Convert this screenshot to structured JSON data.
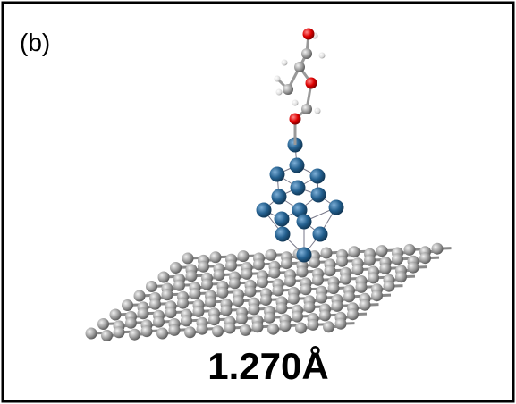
{
  "panel": {
    "label": "(b)",
    "caption": "1.270Å"
  }
}
